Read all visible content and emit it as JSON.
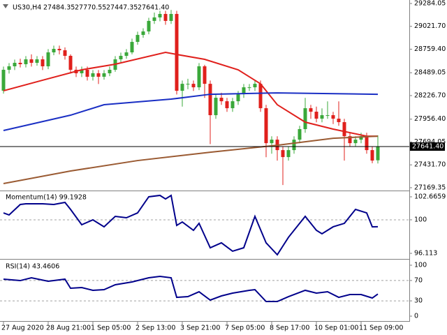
{
  "chart_data": [
    {
      "type": "candlestick",
      "title": "US30,H4",
      "header_values": [
        "27484.35",
        "27770.55",
        "27447.35",
        "27641.40"
      ],
      "categories": [
        "27 Aug 2020",
        null,
        null,
        null,
        null,
        null,
        null,
        null,
        "28 Aug 21:00",
        null,
        null,
        null,
        null,
        null,
        null,
        null,
        "1 Sep 05:00",
        null,
        null,
        null,
        null,
        null,
        null,
        null,
        "2 Sep 13:00",
        null,
        null,
        null,
        null,
        null,
        null,
        null,
        "3 Sep 21:00",
        null,
        null,
        null,
        null,
        null,
        null,
        null,
        "7 Sep 05:00",
        null,
        null,
        null,
        null,
        null,
        null,
        null,
        "8 Sep 17:00",
        null,
        null,
        null,
        null,
        null,
        null,
        null,
        "10 Sep 01:00",
        null,
        null,
        null,
        null,
        null,
        null,
        null,
        "11 Sep 09:00",
        null,
        null,
        null
      ],
      "open": [
        28283,
        28523,
        28563,
        28603,
        28587,
        28643,
        28603,
        28643,
        28563,
        28723,
        28763,
        28747,
        28683,
        28523,
        28483,
        28523,
        28443,
        28483,
        28443,
        28483,
        28523,
        28643,
        28683,
        28723,
        28843,
        28923,
        28963,
        29084,
        29124,
        29164,
        29084,
        29164,
        28282,
        28362,
        28362,
        28322,
        28563,
        28362,
        28002,
        28202,
        28162,
        28082,
        28162,
        28242,
        28322,
        28322,
        28362,
        28082,
        27681,
        27721,
        27601,
        27521,
        27601,
        27721,
        27842,
        28082,
        28042,
        27962,
        28002,
        28002,
        27962,
        27922,
        27761,
        27681,
        27721,
        27761,
        27601,
        27484.35
      ],
      "high": [
        28560,
        28600,
        28640,
        28650,
        28680,
        28700,
        28680,
        28680,
        28760,
        28800,
        28800,
        28780,
        28700,
        28560,
        28560,
        28560,
        28520,
        28520,
        28520,
        28560,
        28680,
        28720,
        28760,
        28880,
        28960,
        29000,
        29120,
        29180,
        29200,
        29200,
        29210,
        29200,
        28400,
        28420,
        28400,
        28600,
        28580,
        28400,
        28240,
        28260,
        28200,
        28200,
        28280,
        28360,
        28360,
        28400,
        28400,
        28120,
        27760,
        27760,
        27640,
        27640,
        27760,
        27880,
        28200,
        28120,
        28100,
        28080,
        28160,
        28040,
        28160,
        27960,
        27800,
        27760,
        27800,
        27800,
        27640,
        27770.55
      ],
      "low": [
        28250,
        28480,
        28520,
        28550,
        28550,
        28560,
        28570,
        28520,
        28530,
        28690,
        28700,
        28640,
        28480,
        28440,
        28440,
        28400,
        28400,
        28360,
        28410,
        28450,
        28500,
        28610,
        28650,
        28700,
        28810,
        28890,
        28930,
        29050,
        29080,
        29040,
        29050,
        28240,
        28100,
        28300,
        28280,
        28290,
        28200,
        27670,
        27960,
        28120,
        28040,
        28040,
        28120,
        28200,
        28280,
        28280,
        28040,
        27520,
        27560,
        27480,
        27200,
        27480,
        27560,
        27680,
        27800,
        27960,
        27920,
        27920,
        27960,
        27900,
        27880,
        27480,
        27640,
        27640,
        27680,
        27560,
        27450,
        27447.35
      ],
      "close": [
        28523,
        28563,
        28603,
        28587,
        28643,
        28603,
        28643,
        28563,
        28723,
        28763,
        28747,
        28683,
        28523,
        28483,
        28523,
        28443,
        28483,
        28443,
        28483,
        28523,
        28643,
        28683,
        28723,
        28843,
        28923,
        28963,
        29084,
        29124,
        29164,
        29084,
        29164,
        28282,
        28362,
        28362,
        28322,
        28563,
        28362,
        28002,
        28202,
        28162,
        28082,
        28162,
        28242,
        28322,
        28322,
        28362,
        28082,
        27681,
        27721,
        27601,
        27521,
        27601,
        27721,
        27842,
        28082,
        28042,
        27962,
        28002,
        28002,
        27962,
        27922,
        27761,
        27681,
        27721,
        27761,
        27601,
        27481,
        27641.4
      ],
      "up_color": "#3aa83a",
      "down_color": "#e0201c",
      "series": [
        {
          "color": "#e0201c",
          "x": [
            0,
            7,
            14,
            20,
            29,
            31,
            36,
            42,
            46,
            49,
            54,
            59,
            65,
            67
          ],
          "values": [
            28282,
            28403,
            28523,
            28587,
            28723,
            28699,
            28643,
            28523,
            28362,
            28122,
            27922,
            27842,
            27761,
            27761
          ]
        },
        {
          "color": "#1a2fc4",
          "x": [
            0,
            12,
            18,
            30,
            37,
            49,
            67
          ],
          "values": [
            27826,
            28002,
            28122,
            28186,
            28242,
            28258,
            28242
          ]
        },
        {
          "color": "#9a5a32",
          "x": [
            0,
            12,
            24,
            37,
            49,
            59,
            67
          ],
          "values": [
            27217,
            27361,
            27481,
            27577,
            27657,
            27737,
            27761
          ]
        }
      ],
      "last_price": {
        "value": 27641.4,
        "label": "27641.40"
      },
      "ylim": [
        27145,
        29324
      ],
      "yticks": [
        {
          "value": 29284.05,
          "label": "29284.05"
        },
        {
          "value": 29021.7,
          "label": "29021.70"
        },
        {
          "value": 28759.4,
          "label": "28759.40"
        },
        {
          "value": 28489.05,
          "label": "28489.05"
        },
        {
          "value": 28226.7,
          "label": "28226.70"
        },
        {
          "value": 27956.4,
          "label": "27956.40"
        },
        {
          "value": 27694.05,
          "label": "27694.05"
        },
        {
          "value": 27431.7,
          "label": "27431.70"
        },
        {
          "value": 27169.35,
          "label": "27169.35"
        }
      ]
    },
    {
      "type": "line",
      "title": "Momentum(14) 99.1928",
      "series": [
        {
          "color": "#00008b",
          "x": [
            0,
            1,
            3,
            4,
            7,
            9,
            11,
            12,
            14,
            16,
            18,
            20,
            22,
            24,
            26,
            28,
            29,
            30,
            31,
            32,
            34,
            35,
            37,
            39,
            41,
            43,
            45,
            47,
            49,
            51,
            52,
            54,
            56,
            57,
            59,
            61,
            63,
            65,
            66,
            67
          ],
          "values": [
            100.805,
            100.562,
            101.776,
            101.857,
            101.857,
            101.776,
            102.018,
            101.209,
            99.429,
            99.996,
            99.187,
            100.4,
            100.24,
            100.8,
            102.67,
            102.83,
            102.42,
            102.83,
            99.35,
            99.75,
            98.78,
            99.59,
            96.76,
            97.33,
            96.36,
            96.76,
            100.4,
            97.33,
            95.95,
            97.97,
            98.78,
            100.4,
            98.78,
            98.38,
            99.19,
            99.59,
            101.21,
            100.8,
            99.19,
            99.1928
          ]
        }
      ],
      "levels": [
        100
      ],
      "ylim": [
        95.547,
        103.232
      ],
      "yticks": [
        102.6659,
        100,
        96.113
      ]
    },
    {
      "type": "line",
      "title": "RSI(14) 43.4606",
      "series": [
        {
          "color": "#00008b",
          "x": [
            0,
            3,
            5,
            8,
            11,
            12,
            14,
            16,
            18,
            20,
            23,
            26,
            28,
            30,
            31,
            33,
            35,
            37,
            39,
            41,
            44,
            45,
            47,
            49,
            51,
            54,
            56,
            58,
            60,
            62,
            64,
            66,
            67
          ],
          "values": [
            72.6,
            69.8,
            75.3,
            68.5,
            72.6,
            54.8,
            56.1,
            50.7,
            52.0,
            61.6,
            67.1,
            75.3,
            78.1,
            75.3,
            36.9,
            38.3,
            47.9,
            31.5,
            39.7,
            45.2,
            50.7,
            52.0,
            28.7,
            28.7,
            38.3,
            50.7,
            45.2,
            47.9,
            36.9,
            42.4,
            42.4,
            35.6,
            43.4606
          ]
        }
      ],
      "levels": [
        70,
        30
      ],
      "ylim": [
        -9.6,
        108.2
      ],
      "yticks": [
        100,
        70,
        30,
        0
      ]
    }
  ]
}
